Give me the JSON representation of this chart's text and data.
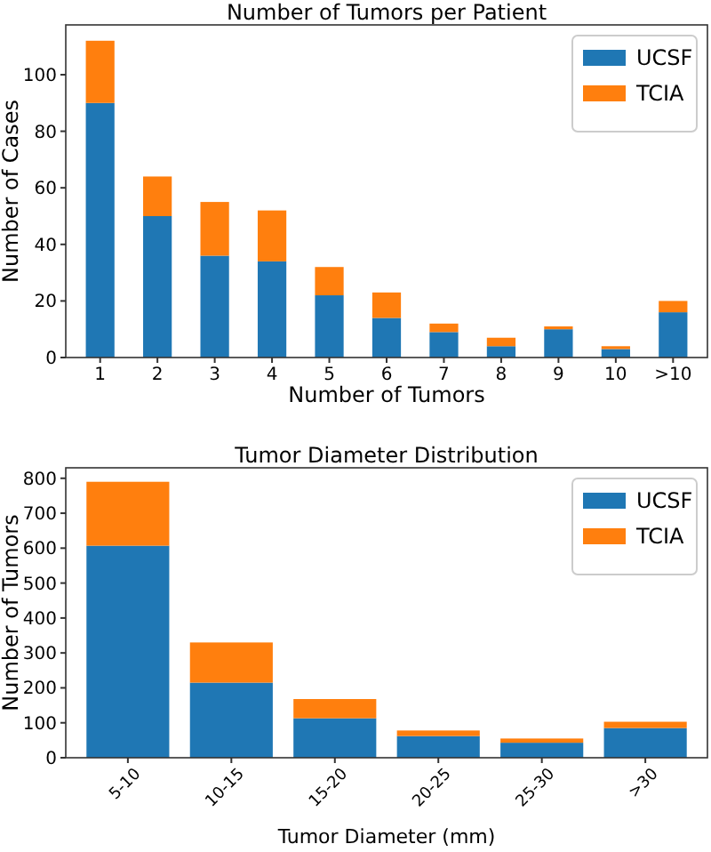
{
  "chart_data": [
    {
      "type": "bar",
      "title": "Number of Tumors per Patient",
      "xlabel": "Number of Tumors",
      "ylabel": "Number of Cases",
      "categories": [
        "1",
        "2",
        "3",
        "4",
        "5",
        "6",
        "7",
        "8",
        "9",
        "10",
        ">10"
      ],
      "stacked": true,
      "ylim": [
        0,
        117.6
      ],
      "yticks": [
        0,
        20,
        40,
        60,
        80,
        100
      ],
      "legend": "top right",
      "series": [
        {
          "name": "UCSF",
          "color": "#1f77b4",
          "values": [
            90,
            50,
            36,
            34,
            22,
            14,
            9,
            4,
            10,
            3,
            16
          ]
        },
        {
          "name": "TCIA",
          "color": "#ff7f0e",
          "values": [
            22,
            14,
            19,
            18,
            10,
            9,
            3,
            3,
            1,
            1,
            4
          ]
        }
      ]
    },
    {
      "type": "bar",
      "title": "Tumor Diameter Distribution",
      "xlabel": "Tumor Diameter (mm)",
      "ylabel": "Number of Tumors",
      "categories": [
        "5-10",
        "10-15",
        "15-20",
        "20-25",
        "25-30",
        ">30"
      ],
      "stacked": true,
      "ylim": [
        0,
        830
      ],
      "yticks": [
        0,
        100,
        200,
        300,
        400,
        500,
        600,
        700,
        800
      ],
      "legend": "top right",
      "series": [
        {
          "name": "UCSF",
          "color": "#1f77b4",
          "values": [
            607,
            215,
            113,
            62,
            43,
            85
          ]
        },
        {
          "name": "TCIA",
          "color": "#ff7f0e",
          "values": [
            183,
            115,
            55,
            16,
            12,
            18
          ]
        }
      ]
    }
  ]
}
